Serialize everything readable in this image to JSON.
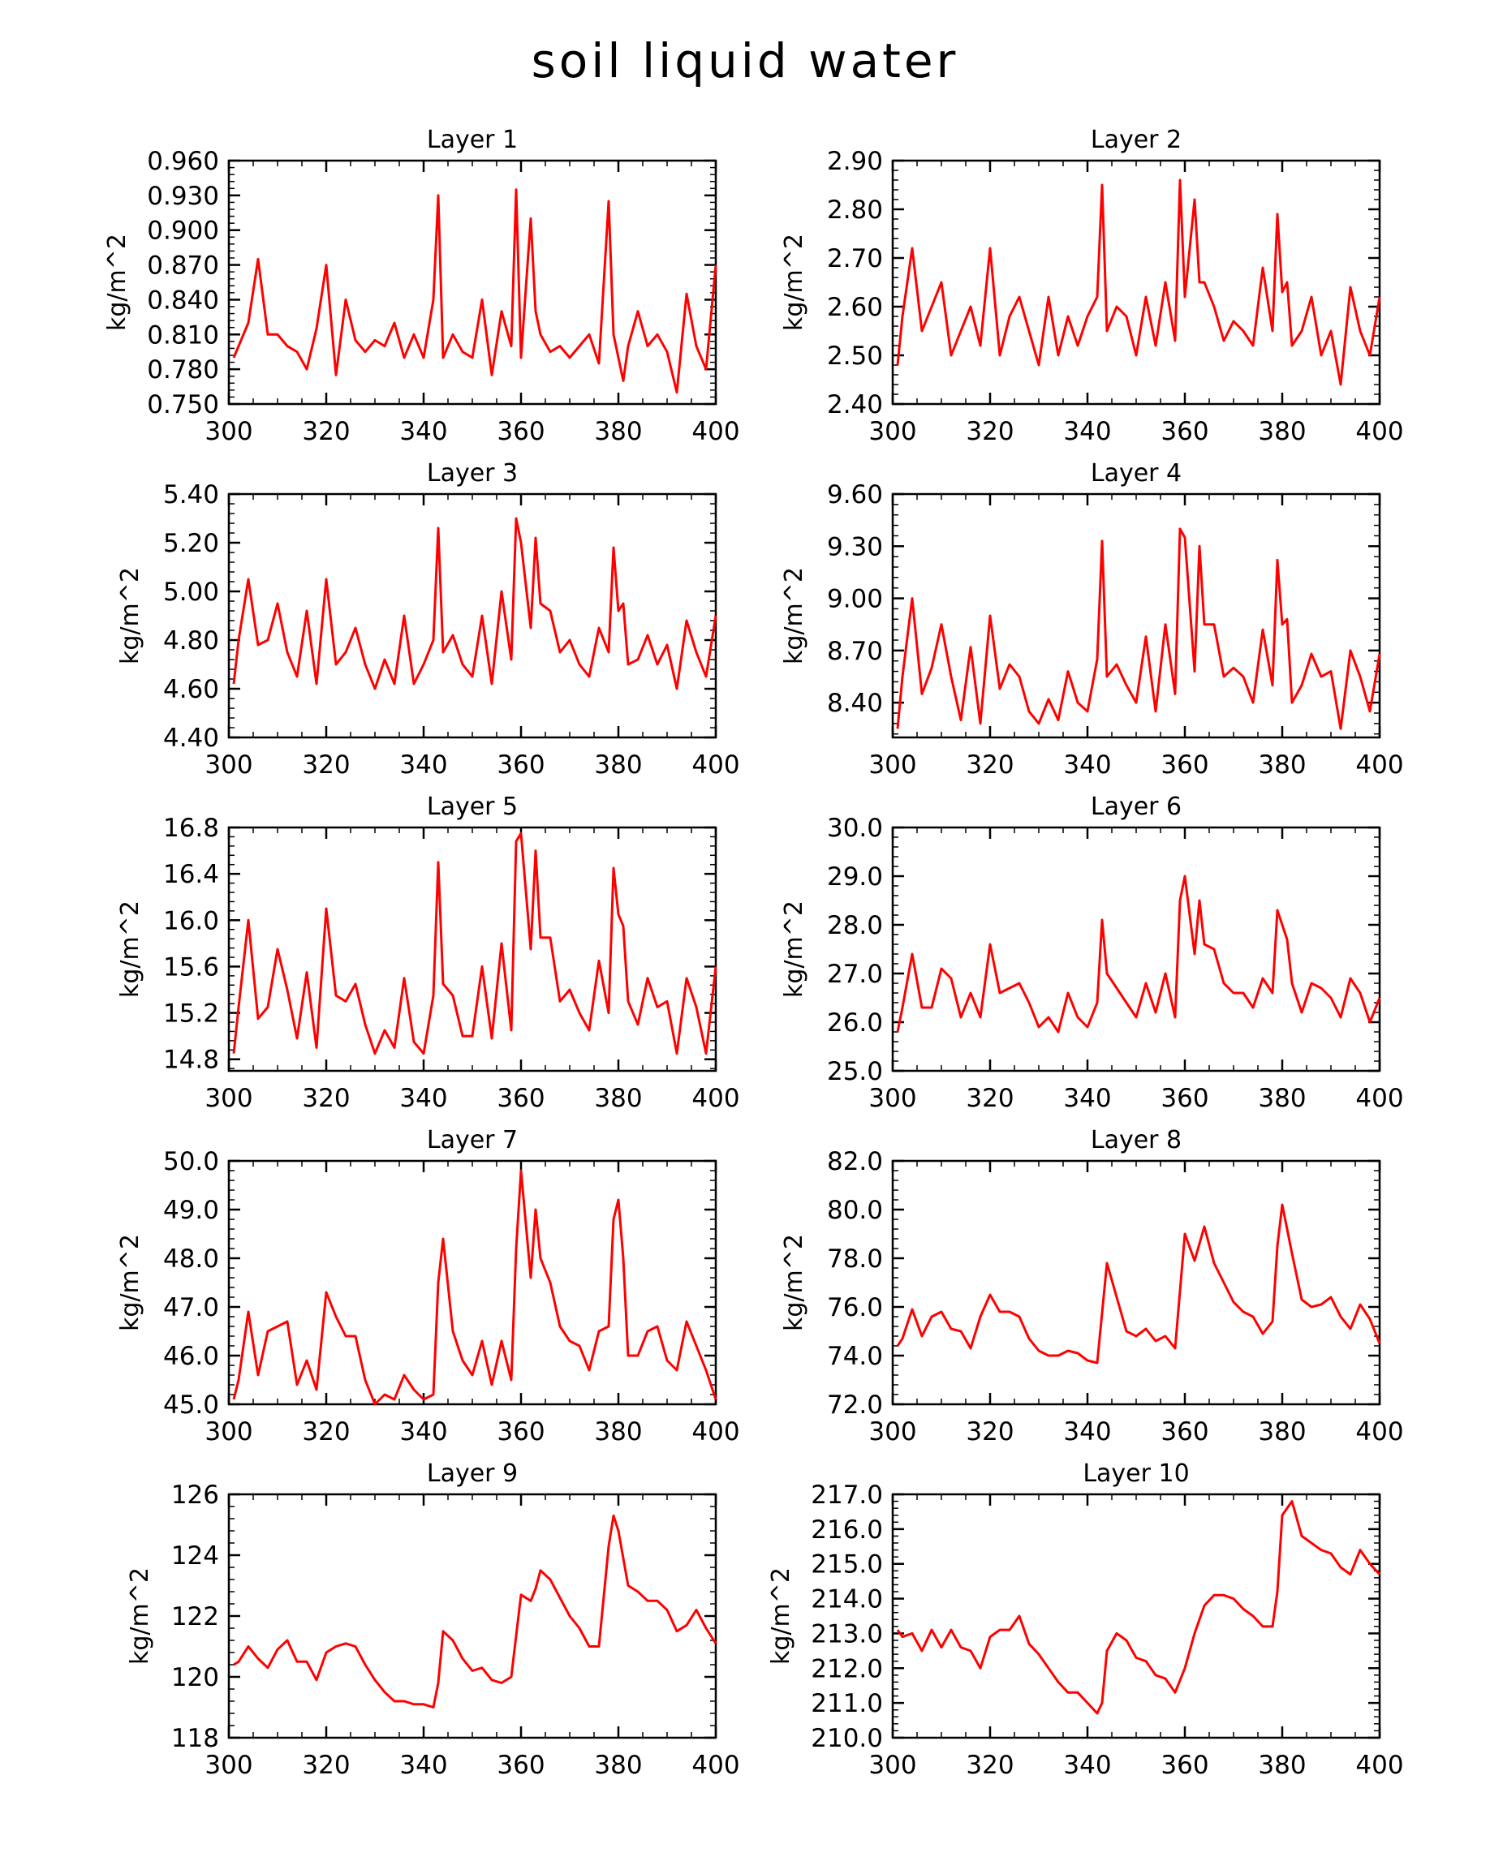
{
  "figure_title": "soil liquid water",
  "line_color": "#ff0000",
  "chart_data": [
    {
      "type": "line",
      "title": "Layer 1",
      "ylabel": "kg/m^2",
      "xlim": [
        300,
        400
      ],
      "ylim": [
        0.75,
        0.96
      ],
      "xticks": [
        "300",
        "320",
        "340",
        "360",
        "380",
        "400"
      ],
      "yticks": [
        "0.750",
        "0.780",
        "0.810",
        "0.840",
        "0.870",
        "0.900",
        "0.930",
        "0.960"
      ],
      "x": [
        301,
        304,
        306,
        308,
        310,
        312,
        314,
        316,
        318,
        320,
        322,
        324,
        326,
        328,
        330,
        332,
        334,
        336,
        338,
        340,
        342,
        343,
        344,
        346,
        348,
        350,
        352,
        354,
        356,
        358,
        359,
        360,
        362,
        363,
        364,
        366,
        368,
        370,
        372,
        374,
        376,
        378,
        379,
        380,
        381,
        382,
        384,
        386,
        388,
        390,
        392,
        394,
        396,
        398,
        400
      ],
      "values": [
        0.79,
        0.82,
        0.875,
        0.81,
        0.81,
        0.8,
        0.795,
        0.78,
        0.815,
        0.87,
        0.775,
        0.84,
        0.805,
        0.795,
        0.805,
        0.8,
        0.82,
        0.79,
        0.81,
        0.79,
        0.84,
        0.93,
        0.79,
        0.81,
        0.795,
        0.79,
        0.84,
        0.775,
        0.83,
        0.8,
        0.935,
        0.79,
        0.91,
        0.83,
        0.81,
        0.795,
        0.8,
        0.79,
        0.8,
        0.81,
        0.785,
        0.925,
        0.81,
        0.79,
        0.77,
        0.8,
        0.83,
        0.8,
        0.81,
        0.795,
        0.76,
        0.845,
        0.8,
        0.78,
        0.87
      ]
    },
    {
      "type": "line",
      "title": "Layer 2",
      "ylabel": "kg/m^2",
      "xlim": [
        300,
        400
      ],
      "ylim": [
        2.4,
        2.9
      ],
      "xticks": [
        "300",
        "320",
        "340",
        "360",
        "380",
        "400"
      ],
      "yticks": [
        "2.40",
        "2.50",
        "2.60",
        "2.70",
        "2.80",
        "2.90"
      ],
      "x": [
        301,
        302,
        304,
        306,
        308,
        310,
        312,
        314,
        316,
        318,
        320,
        322,
        324,
        326,
        328,
        330,
        332,
        334,
        336,
        338,
        340,
        342,
        343,
        344,
        346,
        348,
        350,
        352,
        354,
        356,
        358,
        359,
        360,
        362,
        363,
        364,
        366,
        368,
        370,
        372,
        374,
        376,
        378,
        379,
        380,
        381,
        382,
        384,
        386,
        388,
        390,
        392,
        394,
        396,
        398,
        400
      ],
      "values": [
        2.48,
        2.58,
        2.72,
        2.55,
        2.6,
        2.65,
        2.5,
        2.55,
        2.6,
        2.52,
        2.72,
        2.5,
        2.58,
        2.62,
        2.55,
        2.48,
        2.62,
        2.5,
        2.58,
        2.52,
        2.58,
        2.62,
        2.85,
        2.55,
        2.6,
        2.58,
        2.5,
        2.62,
        2.52,
        2.65,
        2.53,
        2.86,
        2.62,
        2.82,
        2.65,
        2.65,
        2.6,
        2.53,
        2.57,
        2.55,
        2.52,
        2.68,
        2.55,
        2.79,
        2.63,
        2.65,
        2.52,
        2.55,
        2.62,
        2.5,
        2.55,
        2.44,
        2.64,
        2.55,
        2.5,
        2.62
      ]
    },
    {
      "type": "line",
      "title": "Layer 3",
      "ylabel": "kg/m^2",
      "xlim": [
        300,
        400
      ],
      "ylim": [
        4.4,
        5.4
      ],
      "xticks": [
        "300",
        "320",
        "340",
        "360",
        "380",
        "400"
      ],
      "yticks": [
        "4.40",
        "4.60",
        "4.80",
        "5.00",
        "5.20",
        "5.40"
      ],
      "x": [
        301,
        302,
        304,
        306,
        308,
        310,
        312,
        314,
        316,
        318,
        320,
        322,
        324,
        326,
        328,
        330,
        332,
        334,
        336,
        338,
        340,
        342,
        343,
        344,
        346,
        348,
        350,
        352,
        354,
        356,
        358,
        359,
        360,
        362,
        363,
        364,
        366,
        368,
        370,
        372,
        374,
        376,
        378,
        379,
        380,
        381,
        382,
        384,
        386,
        388,
        390,
        392,
        394,
        396,
        398,
        400
      ],
      "values": [
        4.62,
        4.8,
        5.05,
        4.78,
        4.8,
        4.95,
        4.75,
        4.65,
        4.92,
        4.62,
        5.05,
        4.7,
        4.75,
        4.85,
        4.7,
        4.6,
        4.72,
        4.62,
        4.9,
        4.62,
        4.7,
        4.8,
        5.26,
        4.75,
        4.82,
        4.7,
        4.65,
        4.9,
        4.62,
        5.0,
        4.72,
        5.3,
        5.2,
        4.85,
        5.22,
        4.95,
        4.92,
        4.75,
        4.8,
        4.7,
        4.65,
        4.85,
        4.75,
        5.18,
        4.92,
        4.95,
        4.7,
        4.72,
        4.82,
        4.7,
        4.78,
        4.6,
        4.88,
        4.75,
        4.65,
        4.9
      ]
    },
    {
      "type": "line",
      "title": "Layer 4",
      "ylabel": "kg/m^2",
      "xlim": [
        300,
        400
      ],
      "ylim": [
        8.2,
        9.6
      ],
      "xticks": [
        "300",
        "320",
        "340",
        "360",
        "380",
        "400"
      ],
      "yticks": [
        "8.40",
        "8.70",
        "9.00",
        "9.30",
        "9.60"
      ],
      "x": [
        301,
        302,
        304,
        306,
        308,
        310,
        312,
        314,
        316,
        318,
        320,
        322,
        324,
        326,
        328,
        330,
        332,
        334,
        336,
        338,
        340,
        342,
        343,
        344,
        346,
        348,
        350,
        352,
        354,
        356,
        358,
        359,
        360,
        362,
        363,
        364,
        366,
        368,
        370,
        372,
        374,
        376,
        378,
        379,
        380,
        381,
        382,
        384,
        386,
        388,
        390,
        392,
        394,
        396,
        398,
        400
      ],
      "values": [
        8.25,
        8.55,
        9.0,
        8.45,
        8.6,
        8.85,
        8.55,
        8.3,
        8.72,
        8.28,
        8.9,
        8.48,
        8.62,
        8.55,
        8.35,
        8.28,
        8.42,
        8.3,
        8.58,
        8.4,
        8.35,
        8.65,
        9.33,
        8.55,
        8.62,
        8.5,
        8.4,
        8.78,
        8.35,
        8.85,
        8.45,
        9.4,
        9.35,
        8.58,
        9.3,
        8.85,
        8.85,
        8.55,
        8.6,
        8.55,
        8.4,
        8.82,
        8.5,
        9.22,
        8.85,
        8.88,
        8.4,
        8.5,
        8.68,
        8.55,
        8.58,
        8.25,
        8.7,
        8.55,
        8.35,
        8.68
      ]
    },
    {
      "type": "line",
      "title": "Layer 5",
      "ylabel": "kg/m^2",
      "xlim": [
        300,
        400
      ],
      "ylim": [
        14.7,
        16.8
      ],
      "xticks": [
        "300",
        "320",
        "340",
        "360",
        "380",
        "400"
      ],
      "yticks": [
        "14.8",
        "15.2",
        "15.6",
        "16.0",
        "16.4",
        "16.8"
      ],
      "x": [
        301,
        302,
        304,
        306,
        308,
        310,
        312,
        314,
        316,
        318,
        320,
        322,
        324,
        326,
        328,
        330,
        332,
        334,
        336,
        338,
        340,
        342,
        343,
        344,
        346,
        348,
        350,
        352,
        354,
        356,
        358,
        359,
        360,
        362,
        363,
        364,
        366,
        368,
        370,
        372,
        374,
        376,
        378,
        379,
        380,
        381,
        382,
        384,
        386,
        388,
        390,
        392,
        394,
        396,
        398,
        400
      ],
      "values": [
        14.85,
        15.25,
        16.0,
        15.15,
        15.25,
        15.75,
        15.4,
        14.98,
        15.55,
        14.9,
        16.1,
        15.35,
        15.3,
        15.45,
        15.1,
        14.85,
        15.05,
        14.9,
        15.5,
        14.95,
        14.85,
        15.35,
        16.5,
        15.45,
        15.35,
        15.0,
        15.0,
        15.6,
        14.98,
        15.8,
        15.05,
        16.68,
        16.75,
        15.75,
        16.6,
        15.85,
        15.85,
        15.3,
        15.4,
        15.2,
        15.05,
        15.65,
        15.2,
        16.45,
        16.05,
        15.95,
        15.3,
        15.1,
        15.5,
        15.25,
        15.3,
        14.85,
        15.5,
        15.25,
        14.85,
        15.6
      ]
    },
    {
      "type": "line",
      "title": "Layer 6",
      "ylabel": "kg/m^2",
      "xlim": [
        300,
        400
      ],
      "ylim": [
        25.0,
        30.0
      ],
      "xticks": [
        "300",
        "320",
        "340",
        "360",
        "380",
        "400"
      ],
      "yticks": [
        "25.0",
        "26.0",
        "27.0",
        "28.0",
        "29.0",
        "30.0"
      ],
      "x": [
        301,
        302,
        304,
        306,
        308,
        310,
        312,
        314,
        316,
        318,
        320,
        322,
        324,
        326,
        328,
        330,
        332,
        334,
        336,
        338,
        340,
        342,
        343,
        344,
        346,
        348,
        350,
        352,
        354,
        356,
        358,
        359,
        360,
        362,
        363,
        364,
        366,
        368,
        370,
        372,
        374,
        376,
        378,
        379,
        380,
        381,
        382,
        384,
        386,
        388,
        390,
        392,
        394,
        396,
        398,
        400
      ],
      "values": [
        25.8,
        26.3,
        27.4,
        26.3,
        26.3,
        27.1,
        26.9,
        26.1,
        26.6,
        26.1,
        27.6,
        26.6,
        26.7,
        26.8,
        26.4,
        25.9,
        26.1,
        25.8,
        26.6,
        26.1,
        25.9,
        26.4,
        28.1,
        27.0,
        26.7,
        26.4,
        26.1,
        26.8,
        26.2,
        27.0,
        26.1,
        28.5,
        29.0,
        27.4,
        28.5,
        27.6,
        27.5,
        26.8,
        26.6,
        26.6,
        26.3,
        26.9,
        26.6,
        28.3,
        28.0,
        27.7,
        26.8,
        26.2,
        26.8,
        26.7,
        26.5,
        26.1,
        26.9,
        26.6,
        26.0,
        26.5
      ]
    },
    {
      "type": "line",
      "title": "Layer 7",
      "ylabel": "kg/m^2",
      "xlim": [
        300,
        400
      ],
      "ylim": [
        45.0,
        50.0
      ],
      "xticks": [
        "300",
        "320",
        "340",
        "360",
        "380",
        "400"
      ],
      "yticks": [
        "45.0",
        "46.0",
        "47.0",
        "48.0",
        "49.0",
        "50.0"
      ],
      "x": [
        301,
        302,
        304,
        306,
        308,
        310,
        312,
        314,
        316,
        318,
        320,
        322,
        324,
        326,
        328,
        330,
        332,
        334,
        336,
        338,
        340,
        342,
        343,
        344,
        346,
        348,
        350,
        352,
        354,
        356,
        358,
        359,
        360,
        362,
        363,
        364,
        366,
        368,
        370,
        372,
        374,
        376,
        378,
        379,
        380,
        381,
        382,
        384,
        386,
        388,
        390,
        392,
        394,
        396,
        398,
        400
      ],
      "values": [
        45.1,
        45.5,
        46.9,
        45.6,
        46.5,
        46.6,
        46.7,
        45.4,
        45.9,
        45.3,
        47.3,
        46.8,
        46.4,
        46.4,
        45.5,
        45.0,
        45.2,
        45.1,
        45.6,
        45.3,
        45.1,
        45.2,
        47.5,
        48.4,
        46.5,
        45.9,
        45.6,
        46.3,
        45.4,
        46.3,
        45.5,
        48.2,
        49.8,
        47.6,
        49.0,
        48.0,
        47.5,
        46.6,
        46.3,
        46.2,
        45.7,
        46.5,
        46.6,
        48.8,
        49.2,
        48.0,
        46.0,
        46.0,
        46.5,
        46.6,
        45.9,
        45.7,
        46.7,
        46.2,
        45.7,
        45.1
      ]
    },
    {
      "type": "line",
      "title": "Layer 8",
      "ylabel": "kg/m^2",
      "xlim": [
        300,
        400
      ],
      "ylim": [
        72.0,
        82.0
      ],
      "xticks": [
        "300",
        "320",
        "340",
        "360",
        "380",
        "400"
      ],
      "yticks": [
        "72.0",
        "74.0",
        "76.0",
        "78.0",
        "80.0",
        "82.0"
      ],
      "x": [
        301,
        302,
        304,
        306,
        308,
        310,
        312,
        314,
        316,
        318,
        320,
        322,
        324,
        326,
        328,
        330,
        332,
        334,
        336,
        338,
        340,
        342,
        344,
        346,
        348,
        350,
        352,
        354,
        356,
        358,
        360,
        362,
        363,
        364,
        366,
        368,
        370,
        372,
        374,
        376,
        378,
        379,
        380,
        382,
        384,
        386,
        388,
        390,
        392,
        394,
        396,
        398,
        400
      ],
      "values": [
        74.4,
        74.7,
        75.9,
        74.8,
        75.6,
        75.8,
        75.1,
        75.0,
        74.3,
        75.6,
        76.5,
        75.8,
        75.8,
        75.6,
        74.7,
        74.2,
        74.0,
        74.0,
        74.2,
        74.1,
        73.8,
        73.7,
        77.8,
        76.4,
        75.0,
        74.8,
        75.1,
        74.6,
        74.8,
        74.3,
        79.0,
        77.9,
        78.6,
        79.3,
        77.8,
        77.0,
        76.2,
        75.8,
        75.6,
        74.9,
        75.4,
        78.5,
        80.2,
        78.2,
        76.3,
        76.0,
        76.1,
        76.4,
        75.6,
        75.1,
        76.1,
        75.5,
        74.5
      ]
    },
    {
      "type": "line",
      "title": "Layer 9",
      "ylabel": "kg/m^2",
      "xlim": [
        300,
        400
      ],
      "ylim": [
        118,
        126
      ],
      "xticks": [
        "300",
        "320",
        "340",
        "360",
        "380",
        "400"
      ],
      "yticks": [
        "118",
        "120",
        "122",
        "124",
        "126"
      ],
      "x": [
        301,
        302,
        304,
        306,
        308,
        310,
        312,
        314,
        316,
        318,
        320,
        322,
        324,
        326,
        328,
        330,
        332,
        334,
        336,
        338,
        340,
        342,
        343,
        344,
        346,
        348,
        350,
        352,
        354,
        356,
        358,
        360,
        362,
        363,
        364,
        366,
        368,
        370,
        372,
        374,
        376,
        378,
        379,
        380,
        382,
        384,
        386,
        388,
        390,
        392,
        394,
        396,
        398,
        400
      ],
      "values": [
        120.4,
        120.5,
        121.0,
        120.6,
        120.3,
        120.9,
        121.2,
        120.5,
        120.5,
        119.9,
        120.8,
        121.0,
        121.1,
        121.0,
        120.4,
        119.9,
        119.5,
        119.2,
        119.2,
        119.1,
        119.1,
        119.0,
        119.8,
        121.5,
        121.2,
        120.6,
        120.2,
        120.3,
        119.9,
        119.8,
        120.0,
        122.7,
        122.5,
        122.9,
        123.5,
        123.2,
        122.6,
        122.0,
        121.6,
        121.0,
        121.0,
        124.3,
        125.3,
        124.8,
        123.0,
        122.8,
        122.5,
        122.5,
        122.2,
        121.5,
        121.7,
        122.2,
        121.6,
        121.1
      ]
    },
    {
      "type": "line",
      "title": "Layer 10",
      "ylabel": "kg/m^2",
      "xlim": [
        300,
        400
      ],
      "ylim": [
        210.0,
        217.0
      ],
      "xticks": [
        "300",
        "320",
        "340",
        "360",
        "380",
        "400"
      ],
      "yticks": [
        "210.0",
        "211.0",
        "212.0",
        "213.0",
        "214.0",
        "215.0",
        "216.0",
        "217.0"
      ],
      "x": [
        301,
        302,
        304,
        306,
        308,
        310,
        312,
        314,
        316,
        318,
        320,
        322,
        324,
        326,
        328,
        330,
        332,
        334,
        336,
        338,
        340,
        342,
        343,
        344,
        346,
        348,
        350,
        352,
        354,
        356,
        358,
        360,
        362,
        364,
        366,
        368,
        370,
        372,
        374,
        376,
        378,
        379,
        380,
        381,
        382,
        384,
        386,
        388,
        390,
        392,
        394,
        396,
        398,
        400
      ],
      "values": [
        213.1,
        212.9,
        213.0,
        212.5,
        213.1,
        212.6,
        213.1,
        212.6,
        212.5,
        212.0,
        212.9,
        213.1,
        213.1,
        213.5,
        212.7,
        212.4,
        212.0,
        211.6,
        211.3,
        211.3,
        211.0,
        210.7,
        211.0,
        212.5,
        213.0,
        212.8,
        212.3,
        212.2,
        211.8,
        211.7,
        211.3,
        212.0,
        213.0,
        213.8,
        214.1,
        214.1,
        214.0,
        213.7,
        213.5,
        213.2,
        213.2,
        214.2,
        216.4,
        216.6,
        216.8,
        215.8,
        215.6,
        215.4,
        215.3,
        214.9,
        214.7,
        215.4,
        215.0,
        214.7
      ]
    }
  ]
}
